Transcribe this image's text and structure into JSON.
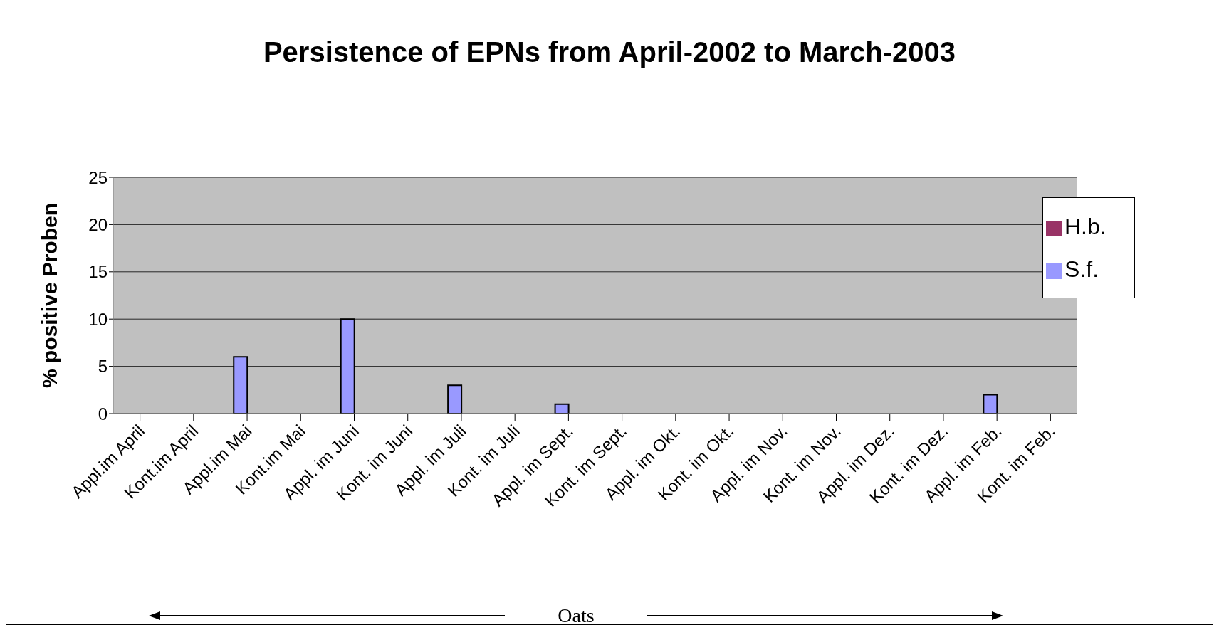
{
  "chart_data": {
    "type": "bar",
    "title": "Persistence of  EPNs from April-2002 to March-2003",
    "xlabel": "Oats",
    "ylabel": "% positive  Proben",
    "categories": [
      "Appl.im April",
      "Kont.im April",
      "Appl.im Mai",
      "Kont.im Mai",
      "Appl. im Juni",
      "Kont. im Juni",
      "Appl. im Juli",
      "Kont. im Juli",
      "Appl. im Sept.",
      "Kont. im Sept.",
      "Appl. im Okt.",
      "Kont. im Okt.",
      "Appl. im Nov.",
      "Kont. im Nov.",
      "Appl. im Dez.",
      "Kont. im Dez.",
      "Appl. im Feb.",
      "Kont. im Feb."
    ],
    "series": [
      {
        "name": "S.f.",
        "color": "#9999ff",
        "values": [
          0,
          0,
          6,
          0,
          10,
          0,
          3,
          0,
          1,
          0,
          0,
          0,
          0,
          0,
          0,
          0,
          2,
          0
        ]
      },
      {
        "name": "H.b.",
        "color": "#993366",
        "values": [
          0,
          0,
          0,
          0,
          0,
          0,
          0,
          0,
          0,
          0,
          0,
          0,
          0,
          0,
          0,
          0,
          0,
          0
        ]
      }
    ],
    "ylim": [
      0,
      25
    ],
    "yticks": [
      0,
      5,
      10,
      15,
      20,
      25
    ],
    "grid": "y",
    "legend": "top right"
  }
}
